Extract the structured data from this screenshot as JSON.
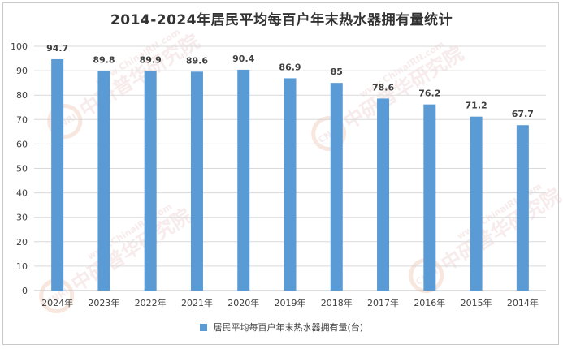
{
  "chart_data": {
    "type": "bar",
    "title": "2014-2024年居民平均每百户年末热水器拥有量统计",
    "categories": [
      "2024年",
      "2023年",
      "2022年",
      "2021年",
      "2020年",
      "2019年",
      "2018年",
      "2017年",
      "2016年",
      "2015年",
      "2014年"
    ],
    "series": [
      {
        "name": "居民平均每百户年末热水器拥有量(台)",
        "values": [
          94.7,
          89.8,
          89.9,
          89.6,
          90.4,
          86.9,
          85,
          78.6,
          76.2,
          71.2,
          67.7
        ],
        "labels": [
          "94.7",
          "89.8",
          "89.9",
          "89.6",
          "90.4",
          "86.9",
          "85",
          "78.6",
          "76.2",
          "71.2",
          "67.7"
        ]
      }
    ],
    "yticks": [
      "0",
      "10",
      "20",
      "30",
      "40",
      "50",
      "60",
      "70",
      "80",
      "90",
      "100"
    ],
    "ylim": [
      0,
      100
    ],
    "xlabel": "",
    "ylabel": "",
    "grid": true,
    "legend": "bottom",
    "colors": {
      "bar": "#5b9bd5",
      "grid": "#d9d9d9",
      "axis": "#bfbfbf",
      "text": "#404040"
    }
  },
  "watermark": {
    "logo_text": "CNRI",
    "cn_text": "中研普华研究院",
    "url_text": "www.ChinaIRN.com"
  }
}
